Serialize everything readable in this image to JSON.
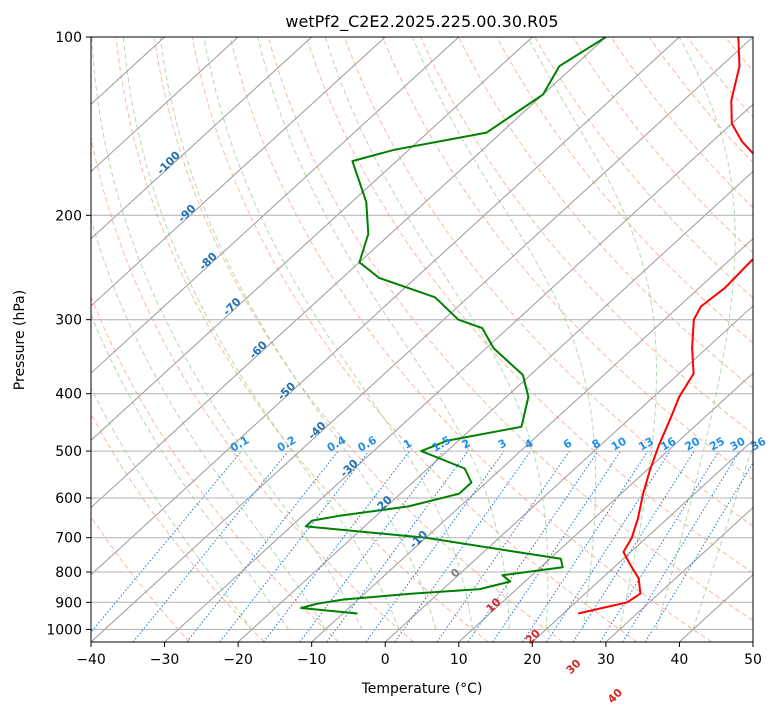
{
  "chart_data": {
    "type": "line",
    "title": "wetPf2_C2E2.2025.225.00.30.R05",
    "xlabel": "Temperature (°C)",
    "ylabel": "Pressure (hPa)",
    "xlim": [
      -40,
      50
    ],
    "ylim": [
      1050,
      100
    ],
    "y_scale": "log",
    "grid": true,
    "x_ticks": [
      -40,
      -30,
      -20,
      -10,
      0,
      10,
      20,
      30,
      40,
      50
    ],
    "y_ticks": [
      1000,
      900,
      800,
      700,
      600,
      500,
      400,
      300,
      200,
      100
    ],
    "isotherm_labels": [
      "-100",
      "-90",
      "-80",
      "-70",
      "-60",
      "-50",
      "-40",
      "-30",
      "-20",
      "-10",
      "0",
      "10",
      "20",
      "30",
      "40"
    ],
    "isotherm_values": [
      -100,
      -90,
      -80,
      -70,
      -60,
      -50,
      -40,
      -30,
      -20,
      -10,
      0,
      10,
      20,
      30,
      40
    ],
    "mixing_ratio_labels": [
      "0.1",
      "0.2",
      "0.4",
      "0.6",
      "1",
      "1.5",
      "2",
      "3",
      "4",
      "6",
      "8",
      "10",
      "13",
      "16",
      "20",
      "25",
      "30",
      "36"
    ],
    "mixing_ratio_values": [
      0.1,
      0.2,
      0.4,
      0.6,
      1,
      1.5,
      2,
      3,
      4,
      6,
      8,
      10,
      13,
      16,
      20,
      25,
      30,
      36
    ],
    "series": [
      {
        "color": "#ff0000",
        "points": [
          [
            22,
            940
          ],
          [
            27,
            900
          ],
          [
            27.5,
            870
          ],
          [
            25,
            820
          ],
          [
            22,
            780
          ],
          [
            19,
            740
          ],
          [
            18,
            700
          ],
          [
            16,
            650
          ],
          [
            13,
            590
          ],
          [
            10.5,
            540
          ],
          [
            8,
            490
          ],
          [
            5.5,
            440
          ],
          [
            3.5,
            405
          ],
          [
            2,
            370
          ],
          [
            -2,
            335
          ],
          [
            -6,
            300
          ],
          [
            -7,
            285
          ],
          [
            -6.5,
            265
          ],
          [
            -7,
            235
          ],
          [
            -10,
            212
          ],
          [
            -12.5,
            190
          ],
          [
            -18,
            168
          ],
          [
            -26,
            150
          ],
          [
            -30,
            140
          ],
          [
            -33.5,
            128
          ],
          [
            -37.5,
            112
          ],
          [
            -42,
            100
          ]
        ]
      },
      {
        "color": "#008000",
        "points": [
          [
            -8,
            940
          ],
          [
            -16.5,
            920
          ],
          [
            -15,
            905
          ],
          [
            -12,
            890
          ],
          [
            -3.5,
            870
          ],
          [
            5,
            855
          ],
          [
            8,
            830
          ],
          [
            6,
            810
          ],
          [
            13,
            785
          ],
          [
            11.5,
            760
          ],
          [
            4.5,
            740
          ],
          [
            -10,
            700
          ],
          [
            -28,
            670
          ],
          [
            -28,
            655
          ],
          [
            -25,
            643
          ],
          [
            -17,
            620
          ],
          [
            -12,
            590
          ],
          [
            -12,
            565
          ],
          [
            -15,
            535
          ],
          [
            -23.5,
            500
          ],
          [
            -21.5,
            480
          ],
          [
            -13.5,
            455
          ],
          [
            -17,
            405
          ],
          [
            -21,
            372
          ],
          [
            -29,
            335
          ],
          [
            -33.5,
            310
          ],
          [
            -38,
            300
          ],
          [
            -44.5,
            275
          ],
          [
            -55,
            255
          ],
          [
            -60,
            240
          ],
          [
            -63,
            215
          ],
          [
            -68,
            190
          ],
          [
            -73,
            172
          ],
          [
            -76,
            162
          ],
          [
            -72,
            155
          ],
          [
            -62,
            145
          ],
          [
            -60,
            125
          ],
          [
            -62,
            112
          ],
          [
            -60,
            100
          ]
        ]
      }
    ]
  }
}
